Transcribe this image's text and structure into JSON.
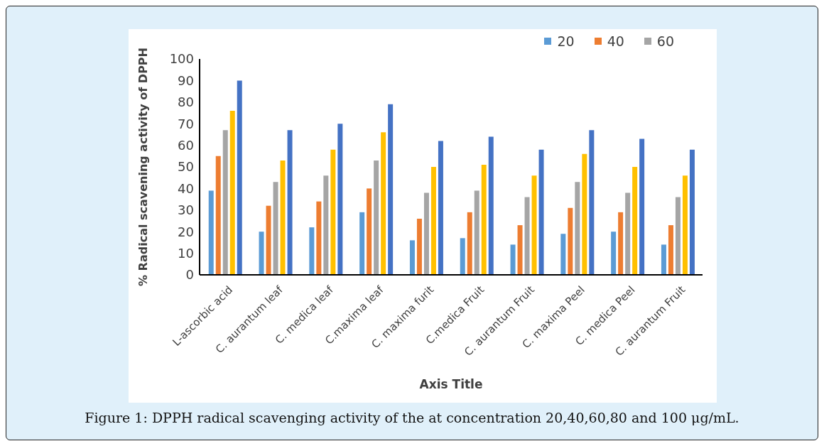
{
  "chart_data": {
    "type": "bar",
    "xlabel": "Axis Title",
    "ylabel": "% Radical scavening activity of DPPH",
    "categories": [
      "L-ascorbic acid",
      "C. aurantum  leaf",
      "C. medica leaf",
      "C.maxima leaf",
      "C. maxima furit",
      "C.medica Fruit",
      "C. aurantum Fruit",
      "C. maxima Peel",
      "C. medica Peel",
      "C. aurantum Fruit"
    ],
    "series": [
      {
        "name": "20",
        "color": "#5b9bd5",
        "values": [
          39,
          20,
          22,
          29,
          16,
          17,
          14,
          19,
          20,
          14
        ]
      },
      {
        "name": "40",
        "color": "#ed7d31",
        "values": [
          55,
          32,
          34,
          40,
          26,
          29,
          23,
          31,
          29,
          23
        ]
      },
      {
        "name": "60",
        "color": "#a5a5a5",
        "values": [
          67,
          43,
          46,
          53,
          38,
          39,
          36,
          43,
          38,
          36
        ]
      },
      {
        "color": "#ffc000",
        "values": [
          76,
          53,
          58,
          66,
          50,
          51,
          46,
          56,
          50,
          46
        ]
      },
      {
        "color": "#4472c4",
        "values": [
          90,
          67,
          70,
          79,
          62,
          64,
          58,
          67,
          63,
          58
        ]
      }
    ],
    "ylim": [
      0,
      100
    ],
    "yticks": [
      0,
      10,
      20,
      30,
      40,
      50,
      60,
      70,
      80,
      90,
      100
    ],
    "legend": "top right",
    "annotations": [
      "Figure 1: DPPH radical scavenging activity of the at concentration 20,40,60,80 and 100 μg/mL."
    ]
  }
}
